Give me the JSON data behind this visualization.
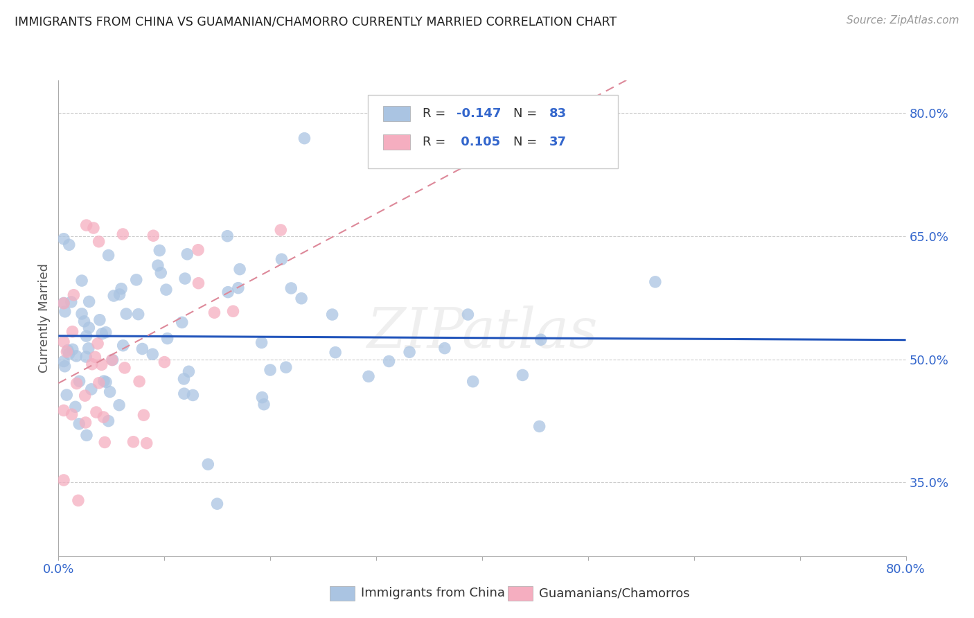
{
  "title": "IMMIGRANTS FROM CHINA VS GUAMANIAN/CHAMORRO CURRENTLY MARRIED CORRELATION CHART",
  "source": "Source: ZipAtlas.com",
  "ylabel": "Currently Married",
  "x_min": 0.0,
  "x_max": 0.8,
  "y_min": 0.26,
  "y_max": 0.84,
  "y_ticks": [
    0.35,
    0.5,
    0.65,
    0.8
  ],
  "y_tick_labels": [
    "35.0%",
    "50.0%",
    "65.0%",
    "80.0%"
  ],
  "blue_R": -0.147,
  "blue_N": 83,
  "pink_R": 0.105,
  "pink_N": 37,
  "blue_color": "#aac4e2",
  "pink_color": "#f5aec0",
  "blue_line_color": "#2255bb",
  "pink_line_color": "#dd8899",
  "legend_label_blue": "Immigrants from China",
  "legend_label_pink": "Guamanians/Chamorros",
  "watermark": "ZIPatlas",
  "accent_color": "#3366cc"
}
